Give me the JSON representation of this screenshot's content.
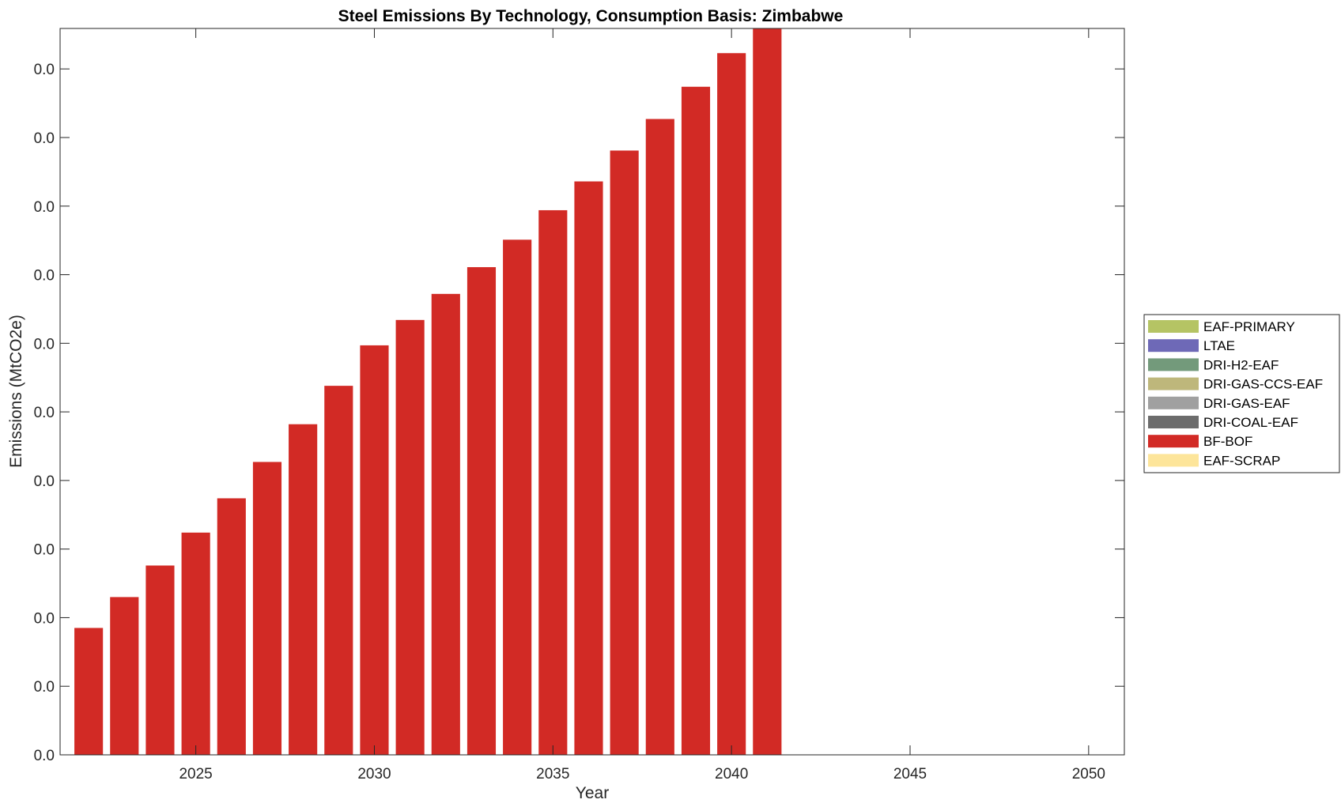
{
  "chart_data": {
    "type": "bar",
    "stacked": true,
    "title": "Steel Emissions By Technology, Consumption Basis: Zimbabwe",
    "xlabel": "Year",
    "ylabel": "Emissions (MtCO2e)",
    "xlim": [
      2021.2,
      2051
    ],
    "ylim": [
      0,
      0.01059
    ],
    "x_ticks": [
      2025,
      2030,
      2035,
      2040,
      2045,
      2050
    ],
    "y_ticks": [
      0,
      0.001,
      0.002,
      0.003,
      0.004,
      0.005,
      0.006,
      0.007,
      0.008,
      0.009,
      0.01
    ],
    "y_tick_labels": [
      "0.0",
      "0.0",
      "0.0",
      "0.0",
      "0.0",
      "0.0",
      "0.0",
      "0.0",
      "0.0",
      "0.0",
      "0.0"
    ],
    "grid": false,
    "legend_position": "right",
    "x": [
      2022,
      2023,
      2024,
      2025,
      2026,
      2027,
      2028,
      2029,
      2030,
      2031,
      2032,
      2033,
      2034,
      2035,
      2036,
      2037,
      2038,
      2039,
      2040,
      2041
    ],
    "series": [
      {
        "name": "EAF-PRIMARY",
        "color": "#b5c464",
        "values": [
          0,
          0,
          0,
          0,
          0,
          0,
          0,
          0,
          0,
          0,
          0,
          0,
          0,
          0,
          0,
          0,
          0,
          0,
          0,
          0
        ]
      },
      {
        "name": "LTAE",
        "color": "#6e69b7",
        "values": [
          0,
          0,
          0,
          0,
          0,
          0,
          0,
          0,
          0,
          0,
          0,
          0,
          0,
          0,
          0,
          0,
          0,
          0,
          0,
          0
        ]
      },
      {
        "name": "DRI-H2-EAF",
        "color": "#739a7b",
        "values": [
          0,
          0,
          0,
          0,
          0,
          0,
          0,
          0,
          0,
          0,
          0,
          0,
          0,
          0,
          0,
          0,
          0,
          0,
          0,
          0
        ]
      },
      {
        "name": "DRI-GAS-CCS-EAF",
        "color": "#beb77b",
        "values": [
          0,
          0,
          0,
          0,
          0,
          0,
          0,
          0,
          0,
          0,
          0,
          0,
          0,
          0,
          0,
          0,
          0,
          0,
          0,
          0
        ]
      },
      {
        "name": "DRI-GAS-EAF",
        "color": "#a0a0a0",
        "values": [
          0,
          0,
          0,
          0,
          0,
          0,
          0,
          0,
          0,
          0,
          0,
          0,
          0,
          0,
          0,
          0,
          0,
          0,
          0,
          0
        ]
      },
      {
        "name": "DRI-COAL-EAF",
        "color": "#6c6c6c",
        "values": [
          0,
          0,
          0,
          0,
          0,
          0,
          0,
          0,
          0,
          0,
          0,
          0,
          0,
          0,
          0,
          0,
          0,
          0,
          0,
          0
        ]
      },
      {
        "name": "BF-BOF",
        "color": "#d22a25",
        "values": [
          0.00185,
          0.0023,
          0.00276,
          0.00324,
          0.00374,
          0.00427,
          0.00482,
          0.00538,
          0.00597,
          0.00634,
          0.00672,
          0.00711,
          0.00751,
          0.00794,
          0.00836,
          0.00881,
          0.00927,
          0.00974,
          0.01023,
          0.0106
        ]
      },
      {
        "name": "EAF-SCRAP",
        "color": "#fde59a",
        "values": [
          0,
          0,
          0,
          0,
          0,
          0,
          0,
          0,
          0,
          0,
          0,
          0,
          0,
          0,
          0,
          0,
          0,
          0,
          0,
          0
        ]
      }
    ]
  }
}
